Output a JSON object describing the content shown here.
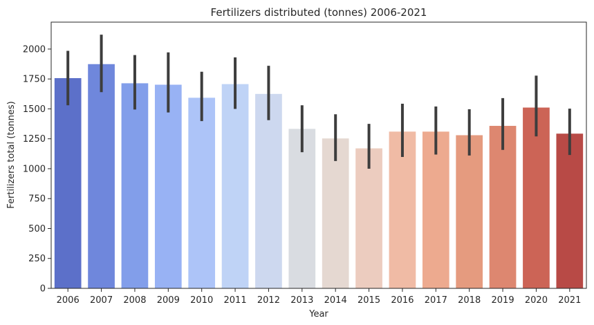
{
  "chart_data": {
    "type": "bar",
    "title": "Fertilizers distributed (tonnes) 2006-2021",
    "xlabel": "Year",
    "ylabel": "Fertilizers total (tonnes)",
    "categories": [
      "2006",
      "2007",
      "2008",
      "2009",
      "2010",
      "2011",
      "2012",
      "2013",
      "2014",
      "2015",
      "2016",
      "2017",
      "2018",
      "2019",
      "2020",
      "2021"
    ],
    "values": [
      1757,
      1874,
      1714,
      1702,
      1593,
      1707,
      1625,
      1333,
      1253,
      1170,
      1310,
      1310,
      1280,
      1358,
      1511,
      1293
    ],
    "error_low": [
      1530,
      1640,
      1495,
      1470,
      1398,
      1500,
      1406,
      1138,
      1064,
      1000,
      1098,
      1118,
      1110,
      1157,
      1270,
      1115
    ],
    "error_high": [
      1985,
      2120,
      1950,
      1972,
      1810,
      1930,
      1860,
      1530,
      1455,
      1375,
      1543,
      1520,
      1497,
      1590,
      1778,
      1502
    ],
    "colors": [
      "#5c70c9",
      "#6f87dc",
      "#829eea",
      "#98b2f4",
      "#adc4f8",
      "#bfd3f6",
      "#cdd8ef",
      "#d9dce1",
      "#e5d8d1",
      "#ecccbf",
      "#f0bba5",
      "#edaa8f",
      "#e59b7f",
      "#dd8770",
      "#cc6456",
      "#b84a46"
    ],
    "yticks": [
      0,
      250,
      500,
      750,
      1000,
      1250,
      1500,
      1750,
      2000
    ],
    "ylim": [
      0,
      2225
    ],
    "grid": false,
    "legend": "none"
  }
}
